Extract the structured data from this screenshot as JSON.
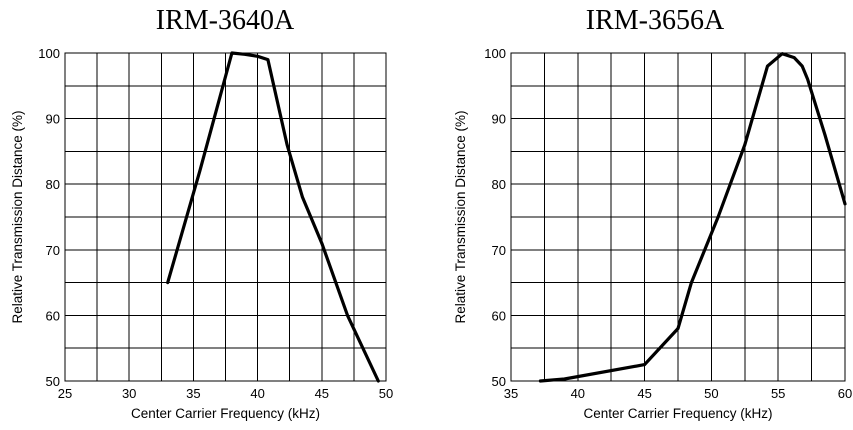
{
  "chart_data": [
    {
      "type": "line",
      "title": "IRM-3640A",
      "xlabel": "Center Carrier Frequency  (kHz)",
      "ylabel": "Relative Transmission Distance (%)",
      "xlim": [
        25,
        50
      ],
      "ylim": [
        50,
        100
      ],
      "xticks": [
        "25",
        "30",
        "35",
        "40",
        "45",
        "50"
      ],
      "yticks": [
        "50",
        "60",
        "70",
        "80",
        "90",
        "100"
      ],
      "grid": true,
      "series": [
        {
          "x": [
            33,
            35.5,
            38,
            39,
            40,
            40.8,
            42.3,
            43.5,
            45,
            47,
            49.4
          ],
          "y": [
            65,
            82,
            100,
            99.8,
            99.5,
            99,
            86,
            78,
            71,
            60,
            50
          ]
        }
      ]
    },
    {
      "type": "line",
      "title": "IRM-3656A",
      "xlabel": "Center Carrier Frequency  (kHz)",
      "ylabel": "Relative Transmission Distance (%)",
      "xlim": [
        35,
        60
      ],
      "ylim": [
        50,
        100
      ],
      "xticks": [
        "35",
        "40",
        "45",
        "50",
        "55",
        "60"
      ],
      "yticks": [
        "50",
        "60",
        "70",
        "80",
        "90",
        "100"
      ],
      "grid": true,
      "series": [
        {
          "x": [
            37.2,
            39,
            45,
            47.5,
            48.5,
            50.5,
            52.5,
            54.2,
            55.3,
            56.2,
            56.8,
            57.2,
            58.5,
            60
          ],
          "y": [
            50,
            50.3,
            52.5,
            58,
            65,
            75,
            86,
            98,
            99.9,
            99.3,
            98,
            96,
            87.5,
            77
          ]
        }
      ]
    }
  ]
}
